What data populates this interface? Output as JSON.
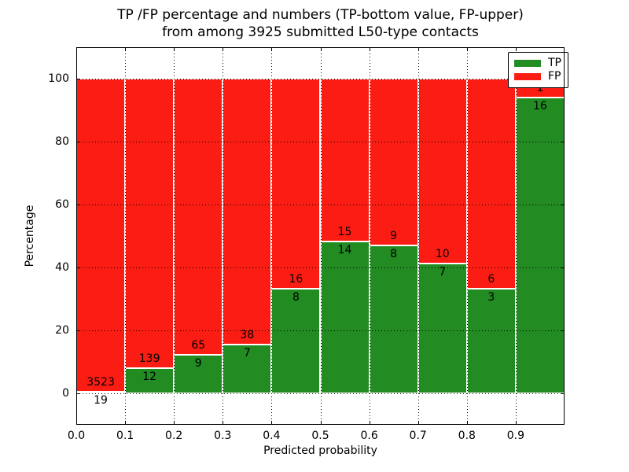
{
  "title": {
    "line1": "TP /FP percentage and numbers (TP-bottom value, FP-upper)",
    "line2": "from among 3925 submitted L50-type contacts"
  },
  "axes": {
    "xlabel": "Predicted probability",
    "ylabel": "Percentage",
    "x_tick_labels": [
      "0.0",
      "0.1",
      "0.2",
      "0.3",
      "0.4",
      "0.5",
      "0.6",
      "0.7",
      "0.8",
      "0.9"
    ],
    "y_tick_labels": [
      "0",
      "20",
      "40",
      "60",
      "80",
      "100"
    ],
    "x_range": [
      0.0,
      1.0
    ],
    "y_range": [
      -10,
      110
    ],
    "grid": "dotted"
  },
  "legend": {
    "position": "upper-right",
    "entries": [
      {
        "label": "TP",
        "color": "#228b22"
      },
      {
        "label": "FP",
        "color": "#fb1d14"
      }
    ]
  },
  "colors": {
    "tp": "#228b22",
    "fp": "#fb1d14",
    "bar_edge": "#ffffff",
    "text": "#000000"
  },
  "chart_data": {
    "type": "bar",
    "stacked": true,
    "unit": "percent of bin total",
    "total_contacts": 3925,
    "title": "TP /FP percentage and numbers (TP-bottom value, FP-upper) from among 3925 submitted L50-type contacts",
    "xlabel": "Predicted probability",
    "ylabel": "Percentage",
    "ylim": [
      -10,
      110
    ],
    "bin_width": 0.1,
    "bins": [
      {
        "x0": 0.0,
        "x1": 0.1,
        "tp": 19,
        "fp": 3523
      },
      {
        "x0": 0.1,
        "x1": 0.2,
        "tp": 12,
        "fp": 139
      },
      {
        "x0": 0.2,
        "x1": 0.3,
        "tp": 9,
        "fp": 65
      },
      {
        "x0": 0.3,
        "x1": 0.4,
        "tp": 7,
        "fp": 38
      },
      {
        "x0": 0.4,
        "x1": 0.5,
        "tp": 8,
        "fp": 16
      },
      {
        "x0": 0.5,
        "x1": 0.6,
        "tp": 14,
        "fp": 15
      },
      {
        "x0": 0.6,
        "x1": 0.7,
        "tp": 8,
        "fp": 9
      },
      {
        "x0": 0.7,
        "x1": 0.8,
        "tp": 7,
        "fp": 10
      },
      {
        "x0": 0.8,
        "x1": 0.9,
        "tp": 3,
        "fp": 6
      },
      {
        "x0": 0.9,
        "x1": 1.0,
        "tp": 16,
        "fp": 1
      }
    ]
  }
}
